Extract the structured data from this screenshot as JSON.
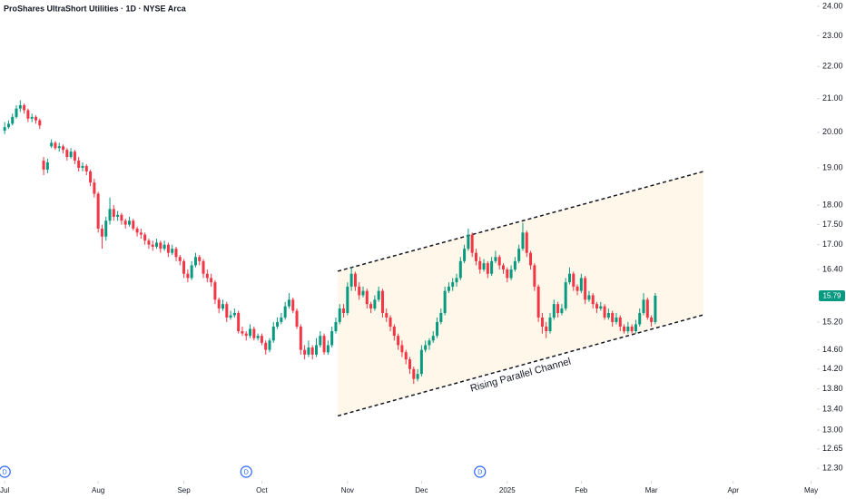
{
  "chart_data": {
    "type": "candlestick",
    "title": "ProShares UltraShort Utilities · 1D · NYSE Arca",
    "up_color": "#089981",
    "down_color": "#f23645",
    "log_scale": true,
    "grid": false,
    "ylim": [
      12.08,
      24.22
    ],
    "yticks": [
      {
        "value": 12.3,
        "label": "12.30"
      },
      12.65,
      {
        "value": 13,
        "label": "13.00"
      },
      {
        "value": 13.4,
        "label": "13.40"
      },
      {
        "value": 13.8,
        "label": "13.80"
      },
      {
        "value": 14.2,
        "label": "14.20"
      },
      {
        "value": 14.6,
        "label": "14.60"
      },
      {
        "value": 15.2,
        "label": "15.20"
      },
      {
        "value": 16.4,
        "label": "16.40"
      },
      {
        "value": 17,
        "label": "17.00"
      },
      {
        "value": 17.5,
        "label": "17.50"
      },
      {
        "value": 18,
        "label": "18.00"
      },
      {
        "value": 19,
        "label": "19.00"
      },
      {
        "value": 20,
        "label": "20.00"
      },
      {
        "value": 21,
        "label": "21.00"
      },
      {
        "value": 22,
        "label": "22.00"
      },
      {
        "value": 23,
        "label": "23.00"
      },
      {
        "value": 24,
        "label": "24.00"
      }
    ],
    "xlim": [
      -1.2,
      208.5
    ],
    "xticks": [
      {
        "value": 0,
        "label": "Jul"
      },
      {
        "value": 24,
        "label": "Aug"
      },
      {
        "value": 46,
        "label": "Sep"
      },
      {
        "value": 66,
        "label": "Oct"
      },
      {
        "value": 88,
        "label": "Nov"
      },
      {
        "value": 107,
        "label": "Dec"
      },
      {
        "value": 129,
        "label": "2025"
      },
      {
        "value": 148,
        "label": "Feb"
      },
      {
        "value": 166,
        "label": "Mar"
      },
      {
        "value": 187,
        "label": "Apr"
      },
      {
        "value": 207,
        "label": "May"
      }
    ],
    "last_price": 15.79,
    "dividends": [
      {
        "x": 0,
        "label": "D"
      },
      {
        "x": 62,
        "label": "D"
      },
      {
        "x": 122,
        "label": "D"
      }
    ],
    "channel": {
      "label": "Rising Parallel Channel",
      "upper": [
        [
          85.5,
          16.36
        ],
        [
          179.4,
          18.9
        ]
      ],
      "lower": [
        [
          85.5,
          13.27
        ],
        [
          179.4,
          15.36
        ]
      ]
    },
    "ohlc": [
      [
        20.05,
        20.3,
        19.95,
        20.15
      ],
      [
        20.15,
        20.35,
        20.1,
        20.25
      ],
      [
        20.25,
        20.55,
        20.2,
        20.45
      ],
      [
        20.45,
        20.8,
        20.4,
        20.7
      ],
      [
        20.7,
        20.95,
        20.6,
        20.8
      ],
      [
        20.8,
        20.85,
        20.55,
        20.65
      ],
      [
        20.65,
        20.7,
        20.3,
        20.4
      ],
      [
        20.4,
        20.55,
        20.3,
        20.45
      ],
      [
        20.45,
        20.5,
        20.25,
        20.35
      ],
      [
        20.35,
        20.4,
        20.1,
        20.2
      ],
      [
        19.2,
        19.3,
        18.8,
        18.95
      ],
      [
        18.95,
        19.25,
        18.85,
        19.15
      ],
      [
        19.6,
        19.8,
        19.55,
        19.7
      ],
      [
        19.7,
        19.75,
        19.5,
        19.55
      ],
      [
        19.55,
        19.7,
        19.45,
        19.6
      ],
      [
        19.6,
        19.65,
        19.4,
        19.5
      ],
      [
        19.5,
        19.55,
        19.2,
        19.3
      ],
      [
        19.3,
        19.55,
        19.25,
        19.45
      ],
      [
        19.45,
        19.5,
        19.1,
        19.2
      ],
      [
        19.2,
        19.3,
        18.9,
        19.0
      ],
      [
        19.0,
        19.15,
        18.9,
        19.05
      ],
      [
        19.05,
        19.1,
        18.8,
        18.9
      ],
      [
        18.9,
        18.95,
        18.5,
        18.6
      ],
      [
        18.6,
        18.7,
        18.2,
        18.3
      ],
      [
        18.3,
        18.35,
        17.3,
        17.4
      ],
      [
        17.4,
        17.5,
        16.9,
        17.2
      ],
      [
        17.2,
        17.7,
        17.1,
        17.6
      ],
      [
        17.6,
        18.2,
        17.5,
        17.9
      ],
      [
        17.9,
        18.0,
        17.6,
        17.7
      ],
      [
        17.7,
        17.85,
        17.6,
        17.75
      ],
      [
        17.75,
        17.8,
        17.5,
        17.6
      ],
      [
        17.6,
        17.65,
        17.4,
        17.5
      ],
      [
        17.5,
        17.7,
        17.45,
        17.6
      ],
      [
        17.6,
        17.65,
        17.35,
        17.4
      ],
      [
        17.4,
        17.45,
        17.2,
        17.3
      ],
      [
        17.3,
        17.4,
        17.15,
        17.25
      ],
      [
        17.25,
        17.3,
        17.0,
        17.1
      ],
      [
        17.1,
        17.15,
        16.9,
        17.0
      ],
      [
        17.0,
        17.1,
        16.85,
        16.95
      ],
      [
        16.95,
        17.15,
        16.9,
        17.05
      ],
      [
        17.05,
        17.1,
        16.8,
        16.9
      ],
      [
        16.9,
        17.1,
        16.85,
        17.0
      ],
      [
        17.0,
        17.05,
        16.7,
        16.8
      ],
      [
        16.8,
        17.0,
        16.75,
        16.9
      ],
      [
        16.9,
        16.95,
        16.6,
        16.7
      ],
      [
        16.7,
        16.75,
        16.5,
        16.6
      ],
      [
        16.6,
        16.65,
        16.2,
        16.3
      ],
      [
        16.3,
        16.4,
        16.1,
        16.2
      ],
      [
        16.2,
        16.6,
        16.15,
        16.5
      ],
      [
        16.5,
        16.8,
        16.45,
        16.7
      ],
      [
        16.7,
        16.75,
        16.5,
        16.6
      ],
      [
        16.6,
        16.65,
        16.2,
        16.3
      ],
      [
        16.3,
        16.4,
        16.1,
        16.2
      ],
      [
        16.2,
        16.3,
        16.0,
        16.1
      ],
      [
        16.1,
        16.15,
        15.6,
        15.7
      ],
      [
        15.7,
        15.75,
        15.4,
        15.5
      ],
      [
        15.5,
        15.7,
        15.45,
        15.6
      ],
      [
        15.6,
        15.65,
        15.2,
        15.3
      ],
      [
        15.3,
        15.45,
        15.25,
        15.35
      ],
      [
        15.35,
        15.5,
        15.3,
        15.4
      ],
      [
        15.4,
        15.45,
        14.95,
        15.0
      ],
      [
        15.0,
        15.1,
        14.9,
        14.95
      ],
      [
        14.95,
        15.0,
        14.8,
        14.9
      ],
      [
        14.9,
        15.15,
        14.85,
        15.05
      ],
      [
        15.05,
        15.1,
        14.8,
        14.85
      ],
      [
        14.85,
        14.95,
        14.8,
        14.9
      ],
      [
        14.9,
        14.95,
        14.7,
        14.75
      ],
      [
        14.75,
        14.8,
        14.5,
        14.6
      ],
      [
        14.6,
        14.85,
        14.55,
        14.8
      ],
      [
        14.8,
        15.2,
        14.75,
        15.1
      ],
      [
        15.1,
        15.3,
        15.05,
        15.2
      ],
      [
        15.2,
        15.4,
        15.15,
        15.3
      ],
      [
        15.3,
        15.65,
        15.25,
        15.55
      ],
      [
        15.55,
        15.85,
        15.5,
        15.7
      ],
      [
        15.7,
        15.75,
        15.4,
        15.45
      ],
      [
        15.45,
        15.5,
        15.05,
        15.1
      ],
      [
        15.1,
        15.15,
        14.5,
        14.6
      ],
      [
        14.6,
        14.7,
        14.4,
        14.5
      ],
      [
        14.5,
        14.8,
        14.45,
        14.65
      ],
      [
        14.65,
        14.7,
        14.4,
        14.5
      ],
      [
        14.5,
        14.85,
        14.45,
        14.7
      ],
      [
        14.7,
        15.0,
        14.65,
        14.9
      ],
      [
        14.9,
        14.95,
        14.5,
        14.55
      ],
      [
        14.55,
        14.8,
        14.5,
        14.7
      ],
      [
        14.7,
        15.1,
        14.65,
        15.0
      ],
      [
        15.0,
        15.3,
        14.95,
        15.2
      ],
      [
        15.2,
        15.6,
        15.15,
        15.5
      ],
      [
        15.5,
        15.6,
        15.3,
        15.4
      ],
      [
        15.4,
        16.1,
        15.35,
        16.0
      ],
      [
        16.0,
        16.45,
        15.9,
        16.3
      ],
      [
        16.3,
        16.35,
        15.9,
        16.0
      ],
      [
        16.0,
        16.1,
        15.7,
        15.8
      ],
      [
        15.8,
        16.0,
        15.75,
        15.9
      ],
      [
        15.9,
        15.95,
        15.5,
        15.6
      ],
      [
        15.6,
        15.65,
        15.4,
        15.5
      ],
      [
        15.5,
        15.8,
        15.45,
        15.7
      ],
      [
        15.7,
        16.0,
        15.65,
        15.9
      ],
      [
        15.9,
        15.95,
        15.3,
        15.4
      ],
      [
        15.4,
        15.5,
        15.2,
        15.3
      ],
      [
        15.3,
        15.35,
        15.0,
        15.1
      ],
      [
        15.1,
        15.15,
        14.8,
        14.9
      ],
      [
        14.9,
        14.95,
        14.6,
        14.7
      ],
      [
        14.7,
        14.8,
        14.45,
        14.55
      ],
      [
        14.55,
        14.6,
        14.3,
        14.4
      ],
      [
        14.4,
        14.45,
        14.1,
        14.2
      ],
      [
        14.2,
        14.25,
        13.9,
        14.0
      ],
      [
        14.0,
        14.2,
        13.95,
        14.1
      ],
      [
        14.1,
        14.7,
        14.05,
        14.6
      ],
      [
        14.6,
        14.8,
        14.55,
        14.7
      ],
      [
        14.7,
        14.85,
        14.6,
        14.8
      ],
      [
        14.8,
        15.0,
        14.75,
        14.9
      ],
      [
        14.9,
        15.3,
        14.85,
        15.2
      ],
      [
        15.2,
        15.5,
        15.15,
        15.4
      ],
      [
        15.4,
        16.0,
        15.35,
        15.9
      ],
      [
        15.9,
        16.1,
        15.85,
        16.0
      ],
      [
        16.0,
        16.2,
        15.9,
        16.1
      ],
      [
        16.1,
        16.3,
        16.0,
        16.2
      ],
      [
        16.2,
        16.7,
        16.15,
        16.6
      ],
      [
        16.6,
        17.0,
        16.55,
        16.9
      ],
      [
        16.9,
        17.4,
        16.85,
        17.25
      ],
      [
        17.25,
        17.3,
        16.7,
        16.8
      ],
      [
        16.8,
        16.9,
        16.5,
        16.6
      ],
      [
        16.6,
        16.7,
        16.3,
        16.4
      ],
      [
        16.4,
        16.65,
        16.35,
        16.55
      ],
      [
        16.55,
        16.6,
        16.2,
        16.3
      ],
      [
        16.3,
        16.7,
        16.25,
        16.6
      ],
      [
        16.6,
        16.85,
        16.55,
        16.7
      ],
      [
        16.7,
        16.75,
        16.4,
        16.5
      ],
      [
        16.5,
        16.55,
        16.3,
        16.4
      ],
      [
        16.4,
        16.45,
        16.1,
        16.2
      ],
      [
        16.2,
        16.5,
        16.15,
        16.4
      ],
      [
        16.4,
        16.7,
        16.35,
        16.6
      ],
      [
        16.6,
        17.0,
        16.55,
        16.9
      ],
      [
        16.9,
        17.55,
        16.85,
        17.3
      ],
      [
        17.3,
        17.35,
        16.7,
        16.8
      ],
      [
        16.8,
        16.85,
        16.4,
        16.5
      ],
      [
        16.5,
        16.55,
        15.9,
        16.0
      ],
      [
        16.0,
        16.05,
        15.2,
        15.3
      ],
      [
        15.3,
        15.4,
        14.95,
        15.1
      ],
      [
        15.1,
        15.2,
        14.85,
        15.0
      ],
      [
        15.0,
        15.4,
        14.95,
        15.3
      ],
      [
        15.3,
        15.7,
        15.25,
        15.6
      ],
      [
        15.6,
        15.65,
        15.3,
        15.4
      ],
      [
        15.4,
        15.6,
        15.35,
        15.5
      ],
      [
        15.5,
        16.2,
        15.45,
        16.1
      ],
      [
        16.1,
        16.45,
        16.05,
        16.3
      ],
      [
        16.3,
        16.35,
        15.9,
        16.0
      ],
      [
        16.0,
        16.05,
        15.8,
        15.9
      ],
      [
        15.9,
        16.3,
        15.85,
        16.2
      ],
      [
        16.2,
        16.25,
        15.6,
        15.7
      ],
      [
        15.7,
        15.9,
        15.65,
        15.8
      ],
      [
        15.8,
        15.85,
        15.5,
        15.6
      ],
      [
        15.6,
        15.65,
        15.4,
        15.5
      ],
      [
        15.5,
        15.65,
        15.45,
        15.55
      ],
      [
        15.55,
        15.6,
        15.25,
        15.3
      ],
      [
        15.3,
        15.5,
        15.25,
        15.4
      ],
      [
        15.4,
        15.45,
        15.1,
        15.2
      ],
      [
        15.2,
        15.4,
        15.15,
        15.3
      ],
      [
        15.3,
        15.35,
        15.0,
        15.1
      ],
      [
        15.1,
        15.15,
        14.95,
        15.0
      ],
      [
        15.0,
        15.2,
        14.95,
        15.1
      ],
      [
        15.1,
        15.15,
        14.95,
        15.0
      ],
      [
        15.0,
        15.25,
        14.95,
        15.15
      ],
      [
        15.15,
        15.5,
        15.1,
        15.4
      ],
      [
        15.4,
        15.85,
        15.35,
        15.7
      ],
      [
        15.7,
        15.75,
        15.25,
        15.3
      ],
      [
        15.3,
        15.35,
        15.1,
        15.2
      ],
      [
        15.2,
        15.85,
        15.15,
        15.79
      ]
    ]
  }
}
